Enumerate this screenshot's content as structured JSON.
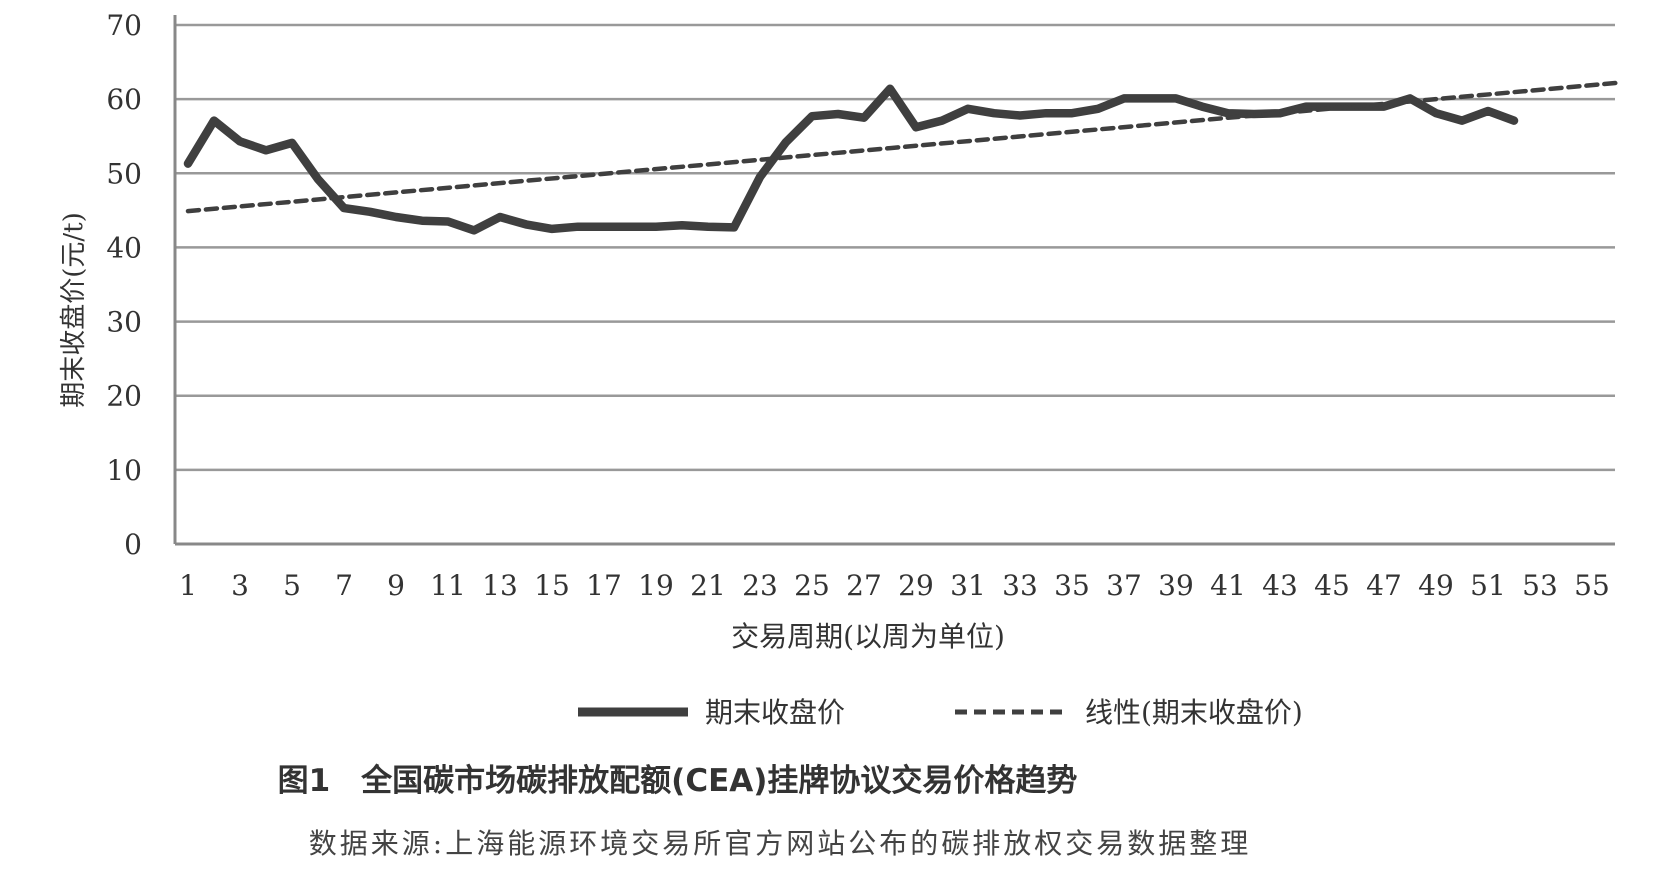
{
  "chart_data": {
    "type": "line",
    "xlabel": "交易周期(以周为单位)",
    "ylabel": "期末收盘价(元/t)",
    "ylim": [
      0,
      70
    ],
    "yticks": [
      0,
      10,
      20,
      30,
      40,
      50,
      60,
      70
    ],
    "xlim": [
      1,
      56
    ],
    "xticks": [
      1,
      3,
      5,
      7,
      9,
      11,
      13,
      15,
      17,
      19,
      21,
      23,
      25,
      27,
      29,
      31,
      33,
      35,
      37,
      39,
      41,
      43,
      45,
      47,
      49,
      51,
      53,
      55
    ],
    "grid": "horizontal",
    "legend_position": "bottom",
    "series": [
      {
        "name": "期末收盘价",
        "style": "solid",
        "color": "#3f3f3f",
        "x": [
          1,
          2,
          3,
          4,
          5,
          6,
          7,
          8,
          9,
          10,
          11,
          12,
          13,
          14,
          15,
          16,
          17,
          18,
          19,
          20,
          21,
          22,
          23,
          24,
          25,
          26,
          27,
          28,
          29,
          30,
          31,
          32,
          33,
          34,
          35,
          36,
          37,
          38,
          39,
          40,
          41,
          42,
          43,
          44,
          45,
          46,
          47,
          48,
          49,
          50,
          51,
          52
        ],
        "values": [
          51.3,
          57.1,
          54.3,
          53.1,
          54.1,
          49.2,
          45.3,
          44.8,
          44.1,
          43.6,
          43.5,
          42.3,
          44.1,
          43.1,
          42.5,
          42.8,
          42.8,
          42.8,
          42.8,
          43.0,
          42.8,
          42.7,
          49.5,
          54.2,
          57.7,
          58.0,
          57.5,
          61.4,
          56.2,
          57.1,
          58.7,
          58.1,
          57.8,
          58.1,
          58.1,
          58.7,
          60.1,
          60.1,
          60.1,
          59.0,
          58.1,
          58.0,
          58.1,
          59.0,
          59.0,
          59.0,
          59.0,
          60.1,
          58.1,
          57.1,
          58.4,
          57.1
        ]
      },
      {
        "name": "线性(期末收盘价)",
        "style": "dashed",
        "color": "#3f3f3f",
        "x": [
          1,
          56
        ],
        "values": [
          44.9,
          62.2
        ]
      }
    ]
  },
  "caption": {
    "title": "图1　全国碳市场碳排放配额(CEA)挂牌协议交易价格趋势",
    "source": "数据来源:上海能源环境交易所官方网站公布的碳排放权交易数据整理"
  }
}
